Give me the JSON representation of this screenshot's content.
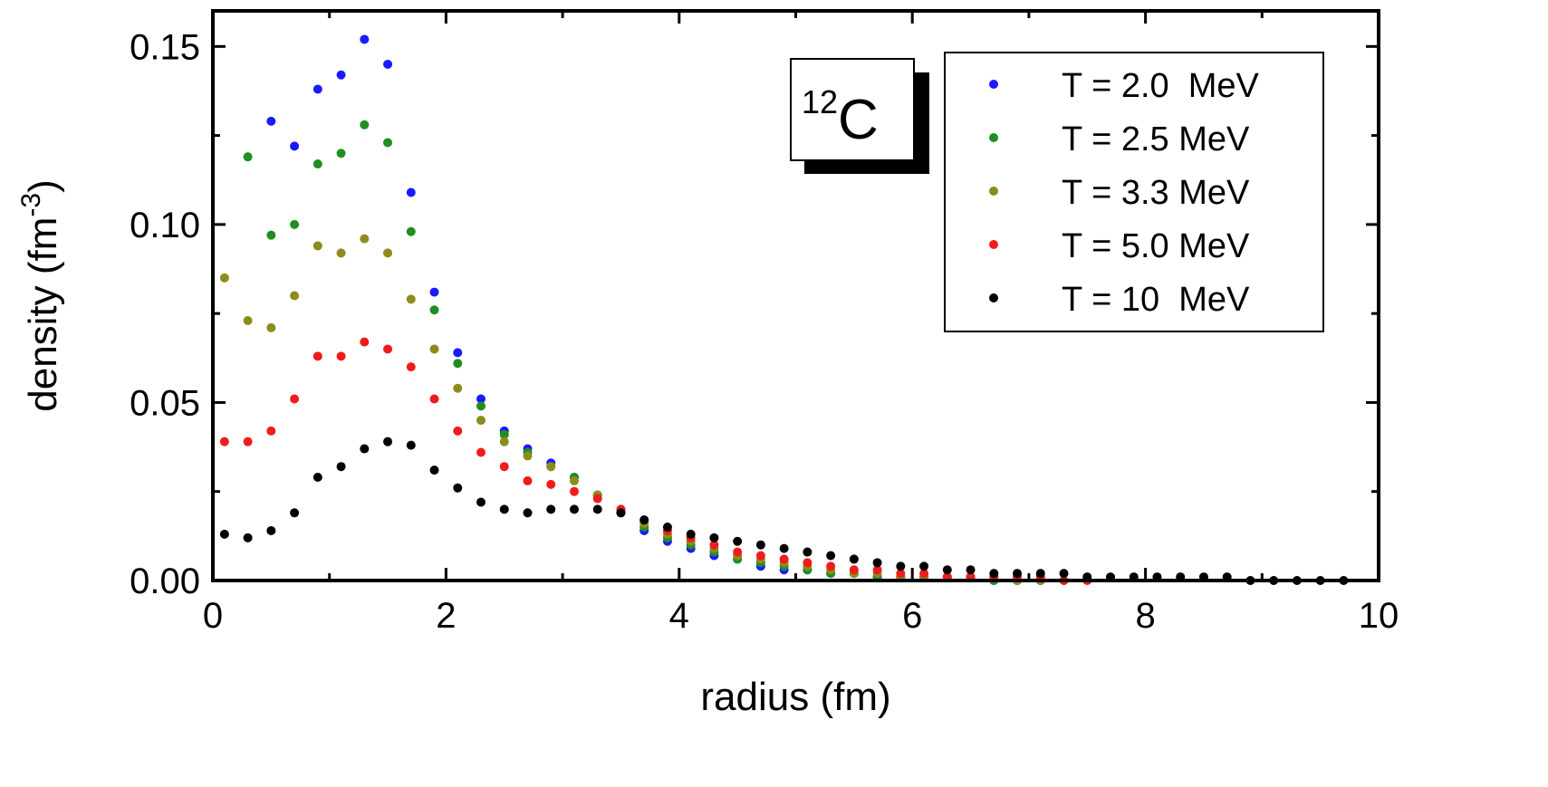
{
  "chart_data": {
    "type": "scatter",
    "xlabel": "radius (fm)",
    "ylabel": {
      "base": "density (fm",
      "sup": "-3",
      "close": ")"
    },
    "xlim": [
      0,
      10
    ],
    "ylim": [
      0,
      0.16
    ],
    "x_ticks": [
      0,
      2,
      4,
      6,
      8,
      10
    ],
    "x_tick_labels": [
      "0",
      "2",
      "4",
      "6",
      "8",
      "10"
    ],
    "y_ticks": [
      0,
      0.05,
      0.1,
      0.15
    ],
    "y_tick_labels": [
      "0.00",
      "0.05",
      "0.10",
      "0.15"
    ],
    "grid": false,
    "legend_position": "top-right",
    "annotation": {
      "mass": "12",
      "element": "C"
    },
    "series": [
      {
        "name": "T = 2.0  MeV",
        "color": "#1a1aff",
        "x": [
          0.5,
          0.7,
          0.9,
          1.1,
          1.3,
          1.5,
          1.7,
          1.9,
          2.1,
          2.3,
          2.5,
          2.7,
          2.9,
          3.1,
          3.3,
          3.5,
          3.7,
          3.9,
          4.1,
          4.3,
          4.5,
          4.7,
          4.9,
          5.1,
          5.3,
          5.5,
          5.7,
          5.9,
          6.1,
          6.3,
          6.5,
          6.7,
          6.9,
          7.1
        ],
        "y": [
          0.129,
          0.122,
          0.138,
          0.142,
          0.152,
          0.145,
          0.109,
          0.081,
          0.064,
          0.051,
          0.042,
          0.037,
          0.033,
          0.029,
          0.024,
          0.019,
          0.014,
          0.011,
          0.009,
          0.007,
          0.006,
          0.004,
          0.003,
          0.003,
          0.002,
          0.002,
          0.001,
          0.001,
          0.001,
          0.001,
          0.001,
          0.0,
          0.0,
          0.0
        ]
      },
      {
        "name": "T = 2.5 MeV",
        "color": "#1f8f1f",
        "x": [
          0.3,
          0.5,
          0.7,
          0.9,
          1.1,
          1.3,
          1.5,
          1.7,
          1.9,
          2.1,
          2.3,
          2.5,
          2.7,
          2.9,
          3.1,
          3.3,
          3.5,
          3.7,
          3.9,
          4.1,
          4.3,
          4.5,
          4.7,
          4.9,
          5.1,
          5.3,
          5.5,
          5.7,
          5.9,
          6.1,
          6.3,
          6.5,
          6.7,
          6.9,
          7.1
        ],
        "y": [
          0.119,
          0.097,
          0.1,
          0.117,
          0.12,
          0.128,
          0.123,
          0.098,
          0.076,
          0.061,
          0.049,
          0.041,
          0.036,
          0.032,
          0.029,
          0.024,
          0.019,
          0.015,
          0.012,
          0.01,
          0.008,
          0.006,
          0.005,
          0.004,
          0.003,
          0.002,
          0.002,
          0.001,
          0.001,
          0.001,
          0.001,
          0.001,
          0.0,
          0.0,
          0.0
        ]
      },
      {
        "name": "T = 3.3 MeV",
        "color": "#8c8c1a",
        "x": [
          0.1,
          0.3,
          0.5,
          0.7,
          0.9,
          1.1,
          1.3,
          1.5,
          1.7,
          1.9,
          2.1,
          2.3,
          2.5,
          2.7,
          2.9,
          3.1,
          3.3,
          3.5,
          3.7,
          3.9,
          4.1,
          4.3,
          4.5,
          4.7,
          4.9,
          5.1,
          5.3,
          5.5,
          5.7,
          5.9,
          6.1,
          6.3,
          6.5,
          6.7,
          6.9,
          7.1,
          7.3
        ],
        "y": [
          0.085,
          0.073,
          0.071,
          0.08,
          0.094,
          0.092,
          0.096,
          0.092,
          0.079,
          0.065,
          0.054,
          0.045,
          0.039,
          0.035,
          0.032,
          0.028,
          0.024,
          0.02,
          0.016,
          0.013,
          0.011,
          0.009,
          0.007,
          0.006,
          0.005,
          0.004,
          0.003,
          0.002,
          0.002,
          0.001,
          0.001,
          0.001,
          0.001,
          0.001,
          0.0,
          0.0,
          0.0
        ]
      },
      {
        "name": "T = 5.0 MeV",
        "color": "#ee1c1c",
        "x": [
          0.1,
          0.3,
          0.5,
          0.7,
          0.9,
          1.1,
          1.3,
          1.5,
          1.7,
          1.9,
          2.1,
          2.3,
          2.5,
          2.7,
          2.9,
          3.1,
          3.3,
          3.5,
          3.7,
          3.9,
          4.1,
          4.3,
          4.5,
          4.7,
          4.9,
          5.1,
          5.3,
          5.5,
          5.7,
          5.9,
          6.1,
          6.3,
          6.5,
          6.7,
          6.9,
          7.1,
          7.3,
          7.5
        ],
        "y": [
          0.039,
          0.039,
          0.042,
          0.051,
          0.063,
          0.063,
          0.067,
          0.065,
          0.06,
          0.051,
          0.042,
          0.036,
          0.032,
          0.028,
          0.027,
          0.025,
          0.023,
          0.02,
          0.017,
          0.014,
          0.012,
          0.01,
          0.008,
          0.007,
          0.006,
          0.005,
          0.004,
          0.003,
          0.003,
          0.002,
          0.002,
          0.001,
          0.001,
          0.001,
          0.001,
          0.001,
          0.0,
          0.0
        ]
      },
      {
        "name": "T = 10  MeV",
        "color": "#000000",
        "x": [
          0.1,
          0.3,
          0.5,
          0.7,
          0.9,
          1.1,
          1.3,
          1.5,
          1.7,
          1.9,
          2.1,
          2.3,
          2.5,
          2.7,
          2.9,
          3.1,
          3.3,
          3.5,
          3.7,
          3.9,
          4.1,
          4.3,
          4.5,
          4.7,
          4.9,
          5.1,
          5.3,
          5.5,
          5.7,
          5.9,
          6.1,
          6.3,
          6.5,
          6.7,
          6.9,
          7.1,
          7.3,
          7.5,
          7.7,
          7.9,
          8.1,
          8.3,
          8.5,
          8.7,
          8.9,
          9.1,
          9.3,
          9.5,
          9.7
        ],
        "y": [
          0.013,
          0.012,
          0.014,
          0.019,
          0.029,
          0.032,
          0.037,
          0.039,
          0.038,
          0.031,
          0.026,
          0.022,
          0.02,
          0.019,
          0.02,
          0.02,
          0.02,
          0.019,
          0.017,
          0.015,
          0.013,
          0.012,
          0.011,
          0.01,
          0.009,
          0.008,
          0.007,
          0.006,
          0.005,
          0.004,
          0.004,
          0.003,
          0.003,
          0.002,
          0.002,
          0.002,
          0.002,
          0.001,
          0.001,
          0.001,
          0.001,
          0.001,
          0.001,
          0.001,
          0.0,
          0.0,
          0.0,
          0.0,
          0.0
        ]
      }
    ]
  }
}
